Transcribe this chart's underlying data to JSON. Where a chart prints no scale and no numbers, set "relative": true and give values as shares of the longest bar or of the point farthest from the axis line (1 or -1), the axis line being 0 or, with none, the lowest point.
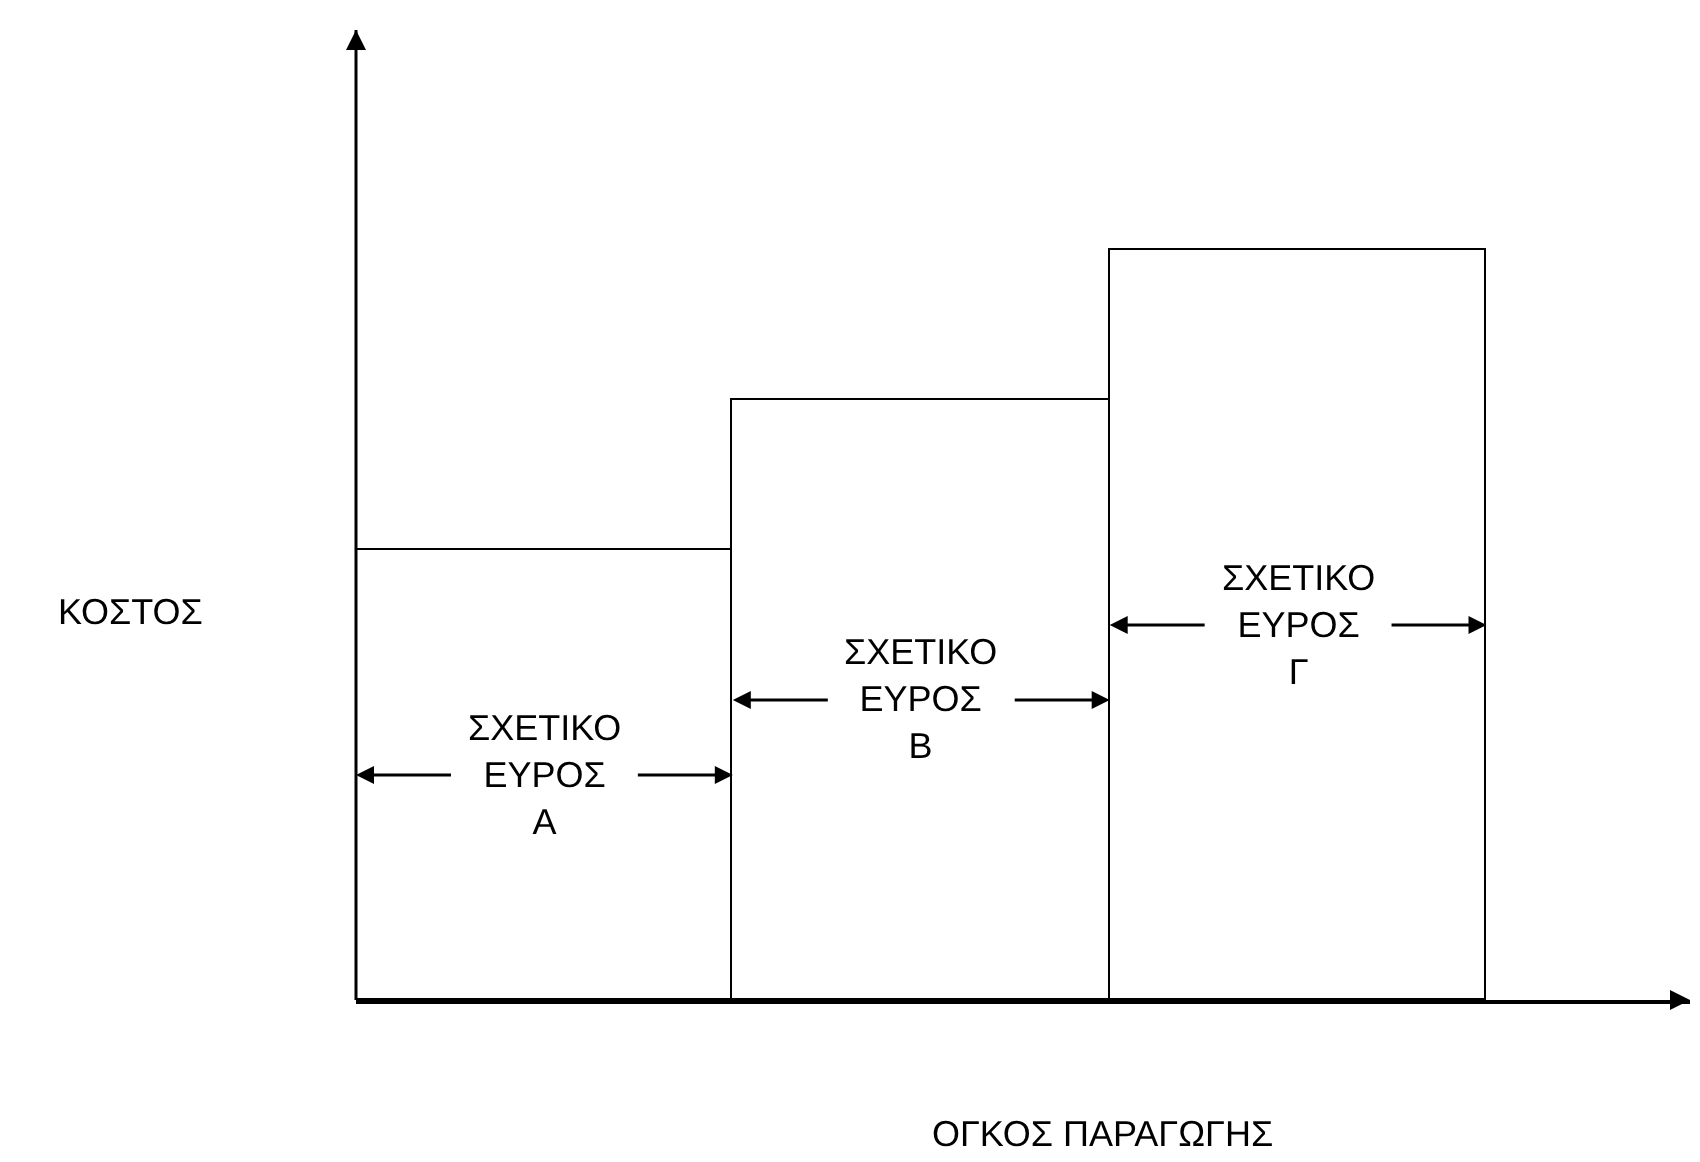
{
  "chart_data": {
    "type": "bar",
    "relative": true,
    "xlabel": "ΟΓΚΟΣ ΠΑΡΑΓΩΓΗΣ",
    "ylabel": "ΚΟΣΤΟΣ",
    "categories": [
      "ΣΧΕΤΙΚΟ ΕΥΡΟΣ Α",
      "ΣΧΕΤΙΚΟ ΕΥΡΟΣ Β",
      "ΣΧΕΤΙΚΟ ΕΥΡΟΣ Γ"
    ],
    "values": [
      0.6,
      0.8,
      1
    ],
    "color": "#ffffff",
    "grid": false,
    "legend": false
  }
}
